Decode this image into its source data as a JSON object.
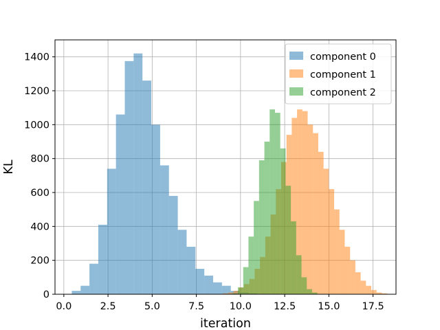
{
  "chart_data": {
    "type": "histogram",
    "xlabel": "iteration",
    "ylabel": "KL",
    "xlim": [
      -0.5,
      18.8
    ],
    "ylim": [
      0,
      1500
    ],
    "xticks": [
      0.0,
      2.5,
      5.0,
      7.5,
      10.0,
      12.5,
      15.0,
      17.5
    ],
    "xtick_labels": [
      "0.0",
      "2.5",
      "5.0",
      "7.5",
      "10.0",
      "12.5",
      "15.0",
      "17.5"
    ],
    "yticks": [
      0,
      200,
      400,
      600,
      800,
      1000,
      1200,
      1400
    ],
    "ytick_labels": [
      "0",
      "200",
      "400",
      "600",
      "800",
      "1000",
      "1200",
      "1400"
    ],
    "grid": true,
    "legend_position": "top-right",
    "series": [
      {
        "name": "component 0",
        "color": "#1f77b4",
        "opacity": 0.5,
        "bin_start": 0.45,
        "bin_width": 0.5,
        "counts": [
          20,
          50,
          180,
          410,
          740,
          1060,
          1375,
          1420,
          1260,
          1000,
          760,
          580,
          380,
          280,
          150,
          110,
          70,
          50,
          20,
          10,
          5
        ]
      },
      {
        "name": "component 1",
        "color": "#ff7f0e",
        "opacity": 0.5,
        "bin_start": 9.0,
        "bin_width": 0.3,
        "counts": [
          5,
          10,
          20,
          40,
          60,
          90,
          150,
          220,
          340,
          470,
          620,
          780,
          940,
          1040,
          1090,
          1080,
          1000,
          950,
          840,
          740,
          620,
          500,
          380,
          280,
          200,
          130,
          80,
          50,
          25,
          10,
          5
        ]
      },
      {
        "name": "component 2",
        "color": "#2ca02c",
        "opacity": 0.5,
        "bin_start": 9.55,
        "bin_width": 0.3,
        "counts": [
          5,
          40,
          160,
          340,
          550,
          790,
          900,
          1090,
          1070,
          860,
          640,
          430,
          230,
          100,
          30,
          10
        ]
      }
    ]
  }
}
